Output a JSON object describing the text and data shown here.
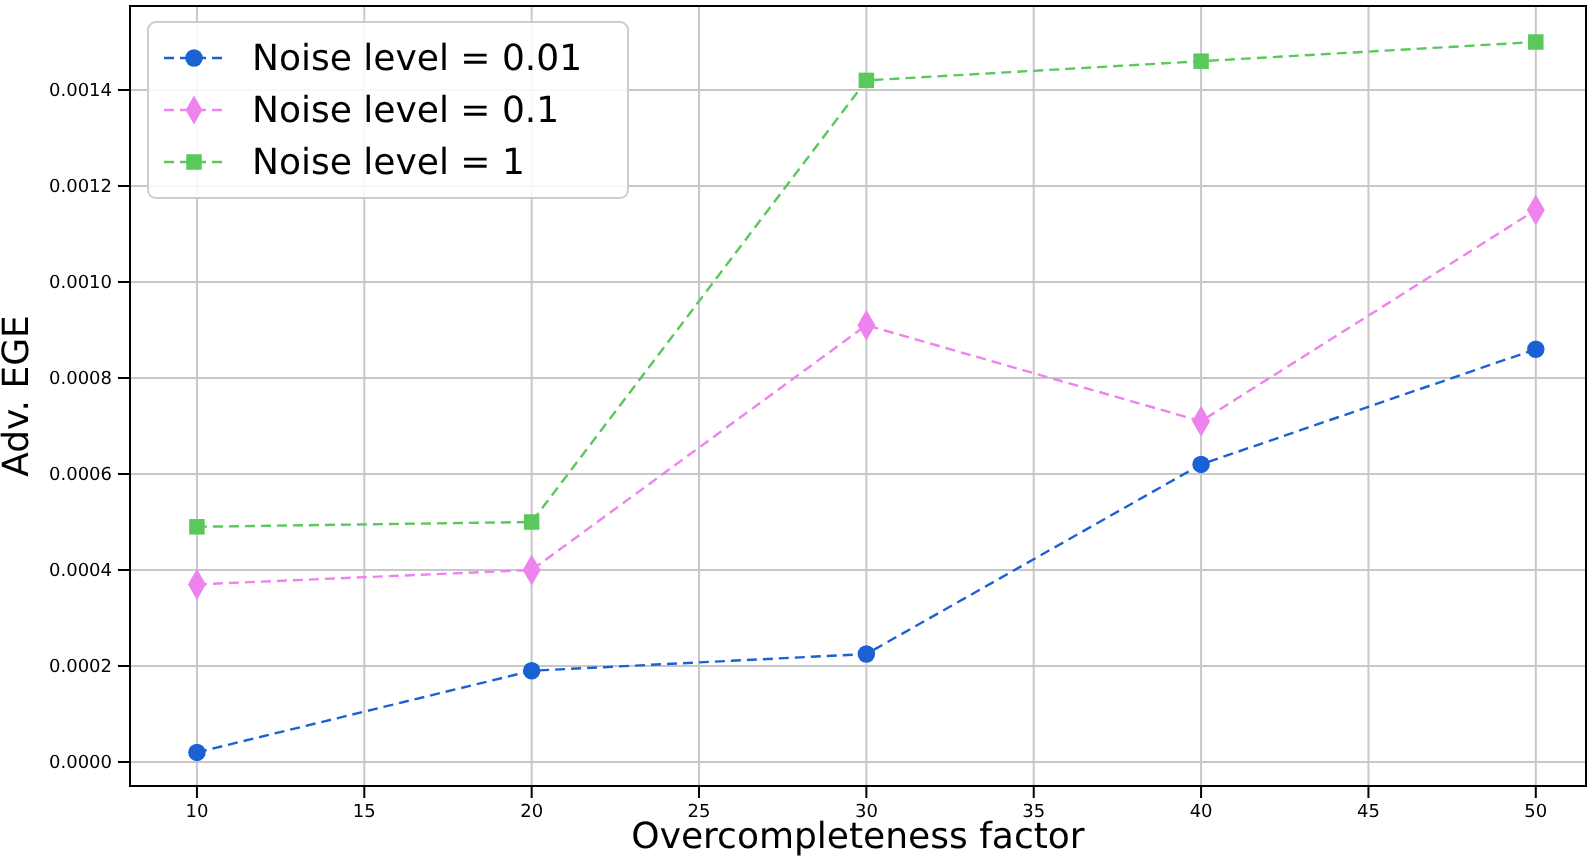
{
  "chart_data": {
    "type": "line",
    "xlabel": "Overcompleteness factor",
    "ylabel": "Adv. EGE",
    "x": [
      10,
      20,
      30,
      40,
      50
    ],
    "series": [
      {
        "name": "Noise level = 0.01",
        "color": "#1a62d4",
        "marker": "circle",
        "line_style": "dashed",
        "values": [
          2e-05,
          0.00019,
          0.000225,
          0.00062,
          0.00086
        ]
      },
      {
        "name": "Noise level = 0.1",
        "color": "#ee82ee",
        "marker": "diamond",
        "line_style": "dashed",
        "values": [
          0.00037,
          0.0004,
          0.00091,
          0.00071,
          0.00115
        ]
      },
      {
        "name": "Noise level = 1",
        "color": "#5ac85a",
        "marker": "square",
        "line_style": "dashed",
        "values": [
          0.00049,
          0.0005,
          0.00142,
          0.00146,
          0.0015
        ]
      }
    ],
    "xlim": [
      8,
      51.5
    ],
    "xticks": [
      10,
      15,
      20,
      25,
      30,
      35,
      40,
      45,
      50
    ],
    "ylim": [
      -5e-05,
      0.001575
    ],
    "yticks": [
      {
        "value": 0,
        "label": "0.0000"
      },
      {
        "value": 0.0002,
        "label": "0.0002"
      },
      {
        "value": 0.0004,
        "label": "0.0004"
      },
      {
        "value": 0.0006,
        "label": "0.0006"
      },
      {
        "value": 0.0008,
        "label": "0.0008"
      },
      {
        "value": 0.001,
        "label": "0.0010"
      },
      {
        "value": 0.0012,
        "label": "0.0012"
      },
      {
        "value": 0.0014,
        "label": "0.0014"
      }
    ],
    "grid": true,
    "legend": "top left"
  }
}
